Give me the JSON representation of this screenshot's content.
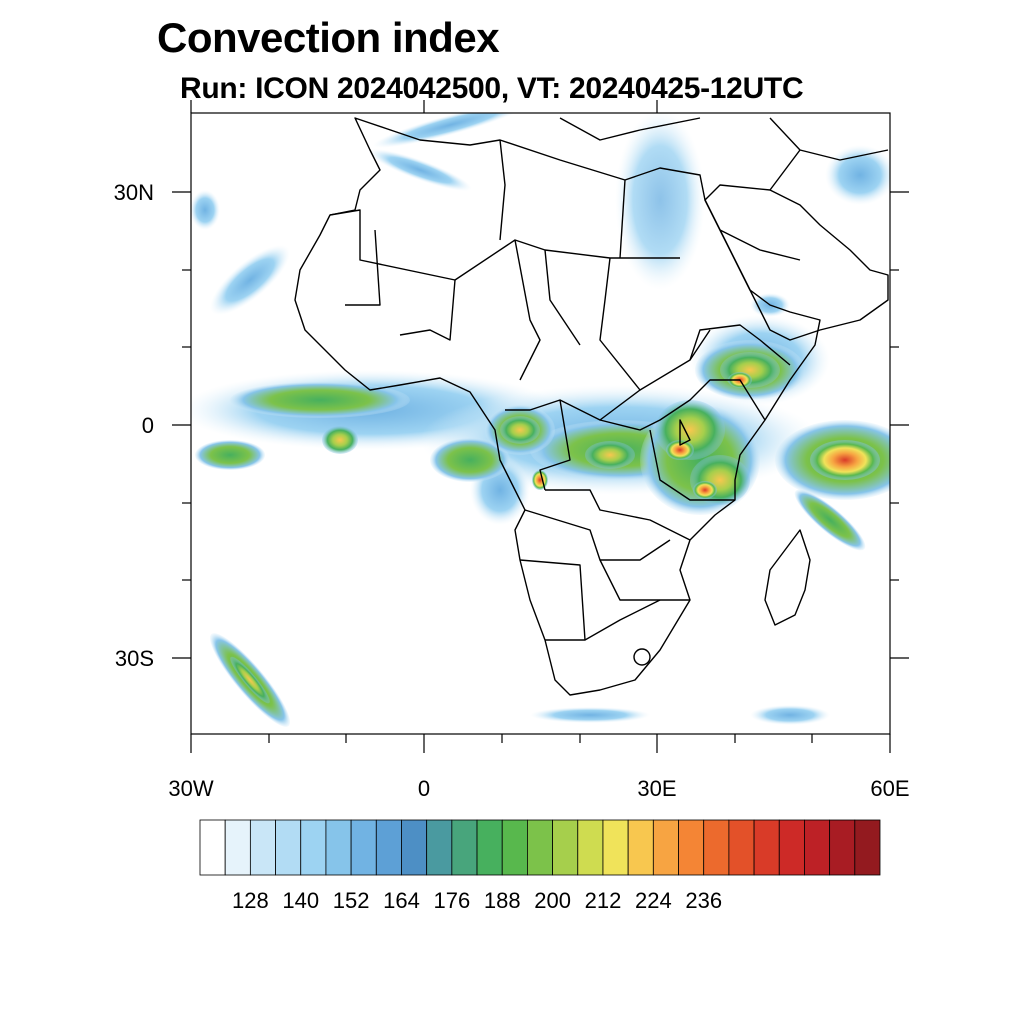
{
  "title": "Convection index",
  "subtitle": "Run: ICON 2024042500,  VT: 20240425-12UTC",
  "y_axis_labels": [
    "30N",
    "0",
    "30S"
  ],
  "x_axis_labels": [
    "30W",
    "0",
    "30E",
    "60E"
  ],
  "colorbar": {
    "labels": [
      "128",
      "140",
      "152",
      "164",
      "176",
      "188",
      "200",
      "212",
      "224",
      "236"
    ],
    "colors": [
      "#ffffff",
      "#e6f3fb",
      "#c9e6f7",
      "#b2dcf4",
      "#9dd3f2",
      "#86c4ea",
      "#71b3e3",
      "#5da0d6",
      "#4d8fc5",
      "#4a9aa0",
      "#48a57c",
      "#47b05e",
      "#58b84d",
      "#7cc24a",
      "#a6cf4c",
      "#cfdc50",
      "#f0e35a",
      "#f8c74f",
      "#f7a442",
      "#f48535",
      "#ec6a2d",
      "#e35129",
      "#d93b28",
      "#cd2a27",
      "#bd2126",
      "#a81c23",
      "#931a1f"
    ]
  },
  "map": {
    "region": "Africa",
    "lon_range": [
      -30,
      60
    ],
    "lat_range": [
      -40,
      40
    ]
  }
}
